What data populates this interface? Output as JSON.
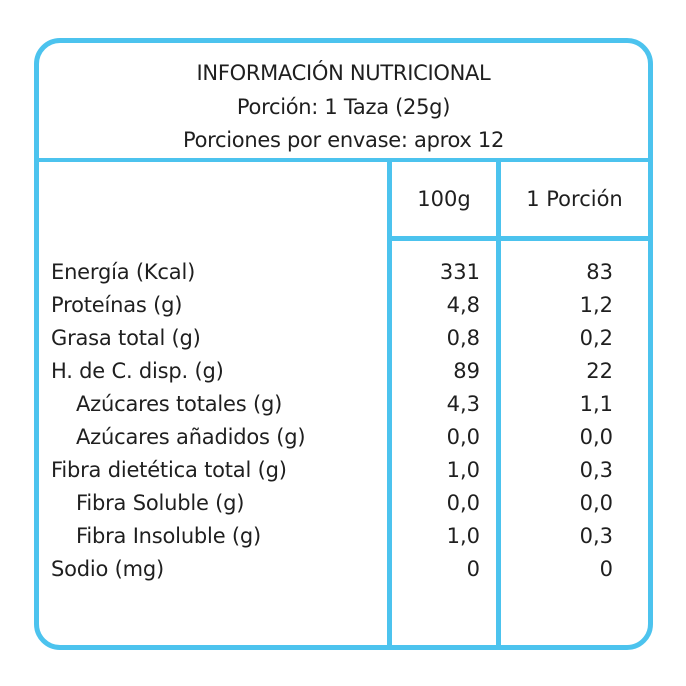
{
  "label": {
    "title": "INFORMACIÓN NUTRICIONAL",
    "serving_size": "Porción: 1 Taza (25g)",
    "servings_per_container": "Porciones por envase: aprox 12",
    "columns": [
      "100g",
      "1 Porción"
    ],
    "rows": [
      {
        "name": "Energía (Kcal)",
        "per_100g": "331",
        "per_serving": "83"
      },
      {
        "name": "Proteínas (g)",
        "per_100g": "4,8",
        "per_serving": "1,2"
      },
      {
        "name": "Grasa total (g)",
        "per_100g": "0,8",
        "per_serving": "0,2"
      },
      {
        "name": "H. de C. disp. (g)",
        "per_100g": "89",
        "per_serving": "22"
      },
      {
        "name": "Azúcares totales (g)",
        "per_100g": "4,3",
        "per_serving": "1,1"
      },
      {
        "name": "Azúcares añadidos (g)",
        "per_100g": "0,0",
        "per_serving": "0,0"
      },
      {
        "name": "Fibra dietética total (g)",
        "per_100g": "1,0",
        "per_serving": "0,3"
      },
      {
        "name": "Fibra Soluble (g)",
        "per_100g": "0,0",
        "per_serving": "0,0"
      },
      {
        "name": "Fibra Insoluble (g)",
        "per_100g": "1,0",
        "per_serving": "0,3"
      },
      {
        "name": "Sodio (mg)",
        "per_100g": "0",
        "per_serving": "0"
      }
    ]
  },
  "colors": {
    "border": "#4cc3ee",
    "text": "#1f1f1f",
    "background": "#ffffff"
  }
}
